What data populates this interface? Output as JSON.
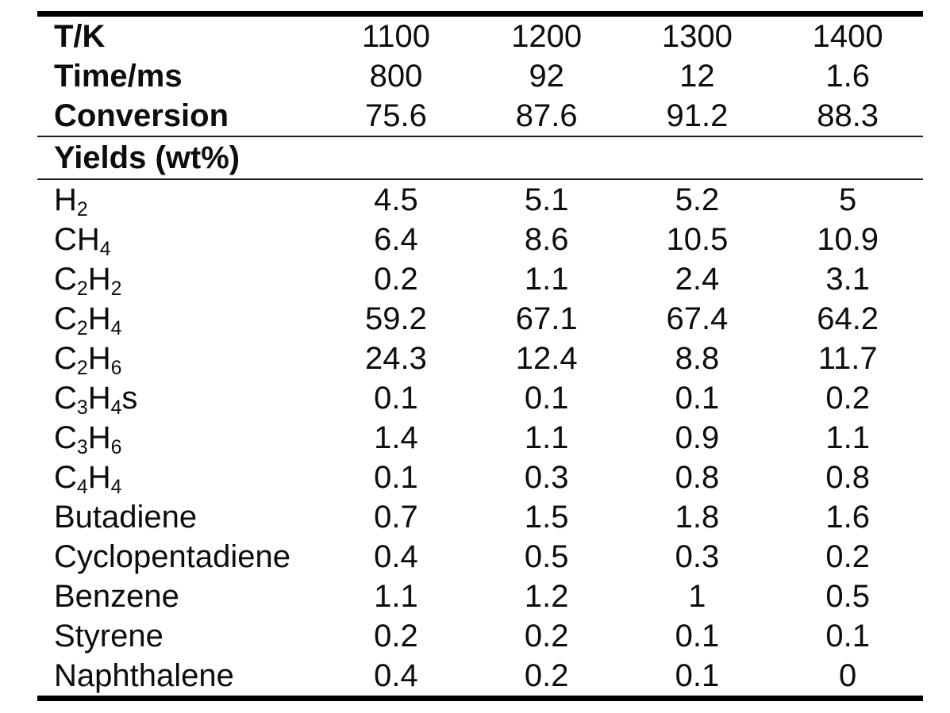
{
  "table": {
    "condition_rows": [
      {
        "label": "T/K",
        "values": [
          "1100",
          "1200",
          "1300",
          "1400"
        ]
      },
      {
        "label": "Time/ms",
        "values": [
          "800",
          "92",
          "12",
          "1.6"
        ]
      },
      {
        "label": "Conversion",
        "values": [
          "75.6",
          "87.6",
          "91.2",
          "88.3"
        ]
      }
    ],
    "section_title": "Yields (wt%)",
    "yield_rows": [
      {
        "label": "H_2",
        "values": [
          "4.5",
          "5.1",
          "5.2",
          "5"
        ]
      },
      {
        "label": "CH_4",
        "values": [
          "6.4",
          "8.6",
          "10.5",
          "10.9"
        ]
      },
      {
        "label": "C_2H_2",
        "values": [
          "0.2",
          "1.1",
          "2.4",
          "3.1"
        ]
      },
      {
        "label": "C_2H_4",
        "values": [
          "59.2",
          "67.1",
          "67.4",
          "64.2"
        ]
      },
      {
        "label": "C_2H_6",
        "values": [
          "24.3",
          "12.4",
          "8.8",
          "11.7"
        ]
      },
      {
        "label": "C_3H_4s",
        "values": [
          "0.1",
          "0.1",
          "0.1",
          "0.2"
        ]
      },
      {
        "label": "C_3H_6",
        "values": [
          "1.4",
          "1.1",
          "0.9",
          "1.1"
        ]
      },
      {
        "label": "C_4H_4",
        "values": [
          "0.1",
          "0.3",
          "0.8",
          "0.8"
        ]
      },
      {
        "label": "Butadiene",
        "values": [
          "0.7",
          "1.5",
          "1.8",
          "1.6"
        ]
      },
      {
        "label": "Cyclopentadiene",
        "values": [
          "0.4",
          "0.5",
          "0.3",
          "0.2"
        ]
      },
      {
        "label": "Benzene",
        "values": [
          "1.1",
          "1.2",
          "1",
          "0.5"
        ]
      },
      {
        "label": "Styrene",
        "values": [
          "0.2",
          "0.2",
          "0.1",
          "0.1"
        ]
      },
      {
        "label": "Naphthalene",
        "values": [
          "0.4",
          "0.2",
          "0.1",
          "0"
        ]
      }
    ],
    "colors": {
      "text": "#0d0d0d",
      "thick_rule": "#000000",
      "thin_rule": "#1f1f1f",
      "background": "#ffffff"
    }
  },
  "chart_data": {
    "type": "table",
    "title": "Yields (wt%)",
    "categories_label": "T/K",
    "categories": [
      1100,
      1200,
      1300,
      1400
    ],
    "conditions": {
      "Time/ms": [
        800,
        92,
        12,
        1.6
      ],
      "Conversion": [
        75.6,
        87.6,
        91.2,
        88.3
      ]
    },
    "series": [
      {
        "name": "H2",
        "values": [
          4.5,
          5.1,
          5.2,
          5
        ]
      },
      {
        "name": "CH4",
        "values": [
          6.4,
          8.6,
          10.5,
          10.9
        ]
      },
      {
        "name": "C2H2",
        "values": [
          0.2,
          1.1,
          2.4,
          3.1
        ]
      },
      {
        "name": "C2H4",
        "values": [
          59.2,
          67.1,
          67.4,
          64.2
        ]
      },
      {
        "name": "C2H6",
        "values": [
          24.3,
          12.4,
          8.8,
          11.7
        ]
      },
      {
        "name": "C3H4s",
        "values": [
          0.1,
          0.1,
          0.1,
          0.2
        ]
      },
      {
        "name": "C3H6",
        "values": [
          1.4,
          1.1,
          0.9,
          1.1
        ]
      },
      {
        "name": "C4H4",
        "values": [
          0.1,
          0.3,
          0.8,
          0.8
        ]
      },
      {
        "name": "Butadiene",
        "values": [
          0.7,
          1.5,
          1.8,
          1.6
        ]
      },
      {
        "name": "Cyclopentadiene",
        "values": [
          0.4,
          0.5,
          0.3,
          0.2
        ]
      },
      {
        "name": "Benzene",
        "values": [
          1.1,
          1.2,
          1,
          0.5
        ]
      },
      {
        "name": "Styrene",
        "values": [
          0.2,
          0.2,
          0.1,
          0.1
        ]
      },
      {
        "name": "Naphthalene",
        "values": [
          0.4,
          0.2,
          0.1,
          0
        ]
      }
    ]
  }
}
